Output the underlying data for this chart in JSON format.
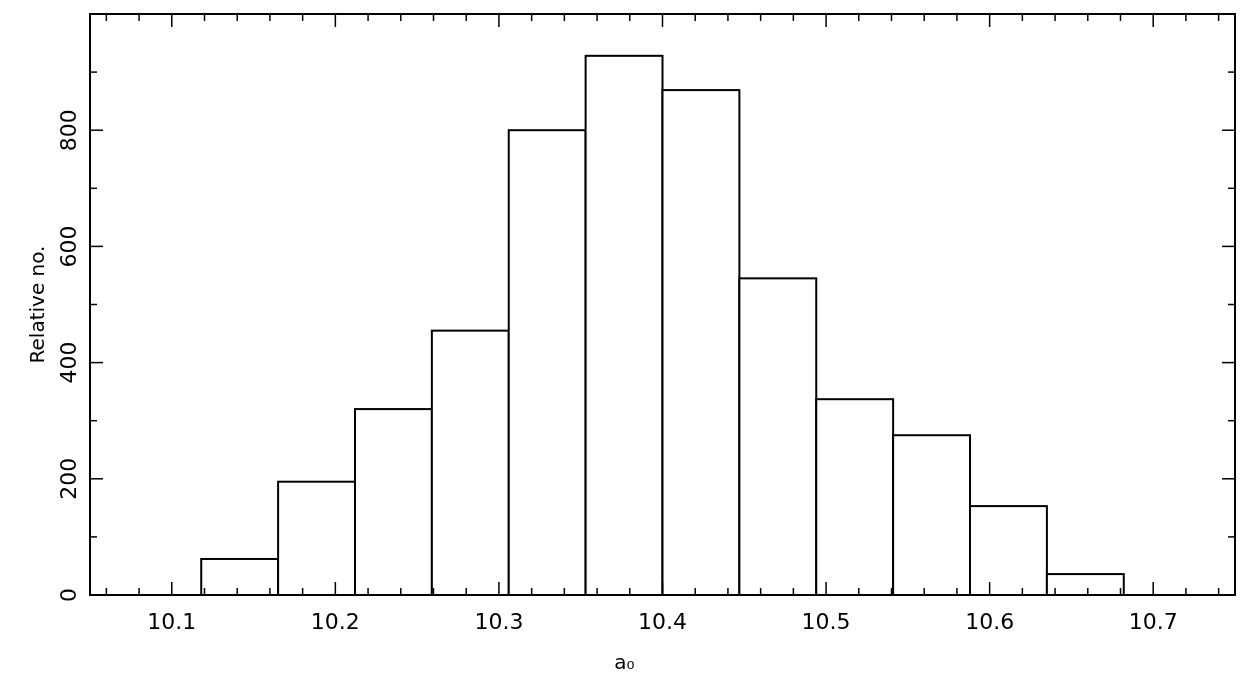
{
  "chart_data": {
    "type": "histogram",
    "xlabel": "a₀",
    "ylabel": "Relative no.",
    "bins": [
      10.118,
      10.165,
      10.212,
      10.259,
      10.306,
      10.353,
      10.4,
      10.447,
      10.494,
      10.541,
      10.588,
      10.635,
      10.682
    ],
    "values": [
      62,
      195,
      320,
      455,
      800,
      928,
      869,
      545,
      337,
      275,
      153,
      36
    ],
    "color": "#ffffff",
    "xlim": [
      10.05,
      10.75
    ],
    "xticks": [
      {
        "value": 10.06,
        "label": null
      },
      {
        "value": 10.08,
        "label": null
      },
      10.1,
      {
        "value": 10.12,
        "label": null
      },
      {
        "value": 10.14,
        "label": null
      },
      {
        "value": 10.16,
        "label": null
      },
      {
        "value": 10.18,
        "label": null
      },
      10.2,
      {
        "value": 10.22,
        "label": null
      },
      {
        "value": 10.24,
        "label": null
      },
      {
        "value": 10.26,
        "label": null
      },
      {
        "value": 10.28,
        "label": null
      },
      10.3,
      {
        "value": 10.32,
        "label": null
      },
      {
        "value": 10.34,
        "label": null
      },
      {
        "value": 10.36,
        "label": null
      },
      {
        "value": 10.38,
        "label": null
      },
      10.4,
      {
        "value": 10.42,
        "label": null
      },
      {
        "value": 10.44,
        "label": null
      },
      {
        "value": 10.46,
        "label": null
      },
      {
        "value": 10.48,
        "label": null
      },
      10.5,
      {
        "value": 10.52,
        "label": null
      },
      {
        "value": 10.54,
        "label": null
      },
      {
        "value": 10.56,
        "label": null
      },
      {
        "value": 10.58,
        "label": null
      },
      10.6,
      {
        "value": 10.62,
        "label": null
      },
      {
        "value": 10.64,
        "label": null
      },
      {
        "value": 10.66,
        "label": null
      },
      {
        "value": 10.68,
        "label": null
      },
      10.7,
      {
        "value": 10.72,
        "label": null
      },
      {
        "value": 10.74,
        "label": null
      }
    ],
    "ylim": [
      0,
      1000
    ],
    "yticks": [
      0,
      {
        "value": 100,
        "label": null
      },
      200,
      {
        "value": 300,
        "label": null
      },
      400,
      {
        "value": 500,
        "label": null
      },
      600,
      {
        "value": 700,
        "label": null
      },
      800,
      {
        "value": 900,
        "label": null
      }
    ],
    "grid": false
  }
}
